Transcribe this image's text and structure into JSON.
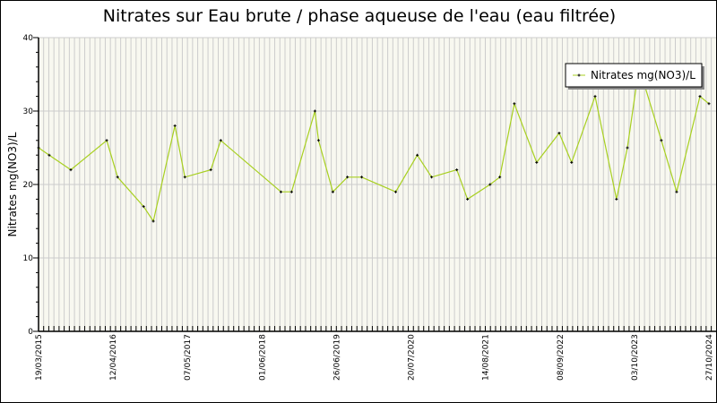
{
  "chart_data": {
    "type": "line",
    "title": "Nitrates sur Eau brute / phase aqueuse de l'eau (eau filtrée)",
    "xlabel": "",
    "ylabel": "Nitrates mg(NO3)/L",
    "ylim": [
      0,
      40
    ],
    "yticks": [
      "0",
      "10",
      "20",
      "30",
      "40"
    ],
    "xlim": [
      "2015-03-19",
      "2024-10-27"
    ],
    "xticks": [
      "19/03/2015",
      "12/04/2016",
      "07/05/2017",
      "01/06/2018",
      "26/06/2019",
      "20/07/2020",
      "14/08/2021",
      "08/09/2022",
      "03/10/2023",
      "27/10/2024"
    ],
    "grid": true,
    "legend_position": "top-right",
    "colors": {
      "line": "#a8d020",
      "marker": "#000000",
      "plot_bg": "#f8f8f0",
      "grid": "#cccccc"
    },
    "series": [
      {
        "name": "Nitrates mg(NO3)/L",
        "x": [
          "2015-03-19",
          "2015-05-14",
          "2015-09-04",
          "2016-03-10",
          "2016-05-06",
          "2016-09-19",
          "2016-11-09",
          "2017-03-02",
          "2017-04-23",
          "2017-09-06",
          "2017-10-28",
          "2018-09-08",
          "2018-11-03",
          "2019-03-05",
          "2019-03-24",
          "2019-06-07",
          "2019-08-22",
          "2019-11-05",
          "2020-05-01",
          "2020-08-22",
          "2020-11-05",
          "2021-03-17",
          "2021-05-12",
          "2021-09-07",
          "2021-10-28",
          "2022-01-12",
          "2022-05-09",
          "2022-09-04",
          "2022-11-08",
          "2023-03-11",
          "2023-07-01",
          "2023-08-27",
          "2023-10-27",
          "2024-02-21",
          "2024-05-11",
          "2024-09-10",
          "2024-10-27"
        ],
        "y": [
          25,
          24,
          22,
          26,
          21,
          17,
          15,
          28,
          21,
          22,
          26,
          19,
          19,
          30,
          26,
          19,
          21,
          21,
          19,
          24,
          21,
          22,
          18,
          20,
          21,
          31,
          23,
          27,
          23,
          32,
          18,
          25,
          36,
          26,
          19,
          32,
          31
        ]
      }
    ]
  }
}
